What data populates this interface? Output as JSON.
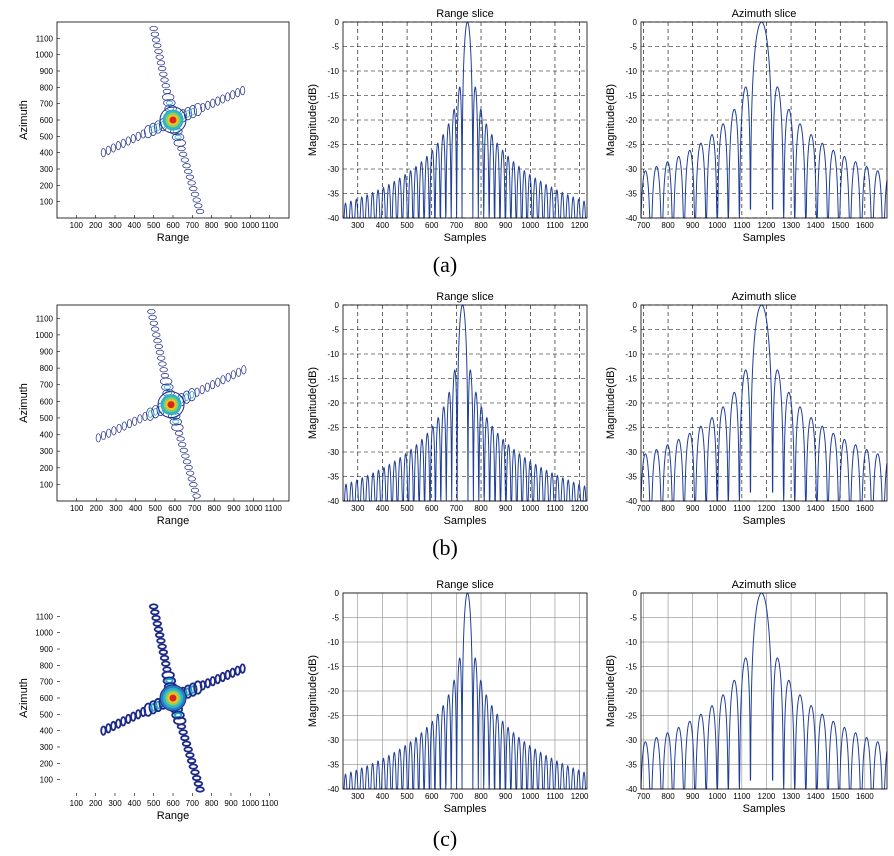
{
  "captions": [
    "(a)",
    "(b)",
    "(c)"
  ],
  "colors": {
    "line": "#1f3f99",
    "contour_outer": "#1e2a8a",
    "contour_mid": "#1ea5c8",
    "core_warm": "#f3c21b",
    "core_hot": "#d7261e"
  },
  "rows": [
    {
      "caption": "(a)",
      "contour": {
        "xlabel": "Range",
        "ylabel": "Azimuth",
        "xticks": [
          "100",
          "200",
          "300",
          "400",
          "500",
          "600",
          "700",
          "800",
          "900",
          "1000",
          "1100"
        ],
        "yticks": [
          "100",
          "200",
          "300",
          "400",
          "500",
          "600",
          "700",
          "800",
          "900",
          "1000",
          "1100"
        ],
        "xlim": [
          0,
          1200
        ],
        "ylim": [
          0,
          1200
        ],
        "center": [
          600,
          600
        ],
        "range_arm": [
          [
            240,
            400
          ],
          [
            960,
            780
          ]
        ],
        "azimuth_arm": [
          [
            500,
            1160
          ],
          [
            740,
            40
          ]
        ]
      },
      "range_slice": {
        "title": "Range slice",
        "xlabel": "Samples",
        "ylabel": "Magnitude(dB)",
        "grid": "dashed",
        "xlim": [
          240,
          1230
        ],
        "ylim": [
          -40,
          0
        ],
        "xticks": [
          "300",
          "400",
          "500",
          "600",
          "700",
          "800",
          "900",
          "1000",
          "1100",
          "1200"
        ],
        "yticks": [
          "0",
          "-5",
          "-10",
          "-15",
          "-20",
          "-25",
          "-30",
          "-35",
          "-40"
        ],
        "peak_x": 745,
        "mainlobe_halfwidth": 22,
        "lobe_spacing": 28,
        "floor_db": -40
      },
      "azimuth_slice": {
        "title": "Azimuth slice",
        "xlabel": "Samples",
        "ylabel": "Magnitude(dB)",
        "grid": "dashed",
        "xlim": [
          690,
          1690
        ],
        "ylim": [
          -40,
          0
        ],
        "xticks": [
          "700",
          "800",
          "900",
          "1000",
          "1100",
          "1200",
          "1300",
          "1400",
          "1500",
          "1600"
        ],
        "yticks": [
          "0",
          "-5",
          "-10",
          "-15",
          "-20",
          "-25",
          "-30",
          "-35",
          "-40"
        ],
        "peak_x": 1180,
        "mainlobe_halfwidth": 45,
        "lobe_spacing": 68,
        "floor_db": -40
      }
    },
    {
      "caption": "(b)",
      "contour": {
        "xlabel": "Range",
        "ylabel": "Azimuth",
        "xticks": [
          "100",
          "200",
          "300",
          "400",
          "500",
          "600",
          "700",
          "800",
          "900",
          "1000",
          "1100"
        ],
        "yticks": [
          "100",
          "200",
          "300",
          "400",
          "500",
          "600",
          "700",
          "800",
          "900",
          "1000",
          "1100"
        ],
        "xlim": [
          0,
          1180
        ],
        "ylim": [
          0,
          1180
        ],
        "center": [
          580,
          580
        ],
        "range_arm": [
          [
            210,
            380
          ],
          [
            950,
            790
          ]
        ],
        "azimuth_arm": [
          [
            480,
            1140
          ],
          [
            710,
            30
          ]
        ]
      },
      "range_slice": {
        "title": "Range slice",
        "xlabel": "Samples",
        "ylabel": "Magnitude(dB)",
        "grid": "dashed",
        "xlim": [
          240,
          1230
        ],
        "ylim": [
          -40,
          0
        ],
        "xticks": [
          "300",
          "400",
          "500",
          "600",
          "700",
          "800",
          "900",
          "1000",
          "1100",
          "1200"
        ],
        "yticks": [
          "0",
          "-5",
          "-10",
          "-15",
          "-20",
          "-25",
          "-30",
          "-35",
          "-40"
        ],
        "peak_x": 725,
        "mainlobe_halfwidth": 22,
        "lobe_spacing": 28,
        "floor_db": -40
      },
      "azimuth_slice": {
        "title": "Azimuth slice",
        "xlabel": "Samples",
        "ylabel": "Magnitude(dB)",
        "grid": "dashed",
        "xlim": [
          690,
          1690
        ],
        "ylim": [
          -40,
          0
        ],
        "xticks": [
          "700",
          "800",
          "900",
          "1000",
          "1100",
          "1200",
          "1300",
          "1400",
          "1500",
          "1600"
        ],
        "yticks": [
          "0",
          "-5",
          "-10",
          "-15",
          "-20",
          "-25",
          "-30",
          "-35",
          "-40"
        ],
        "peak_x": 1180,
        "mainlobe_halfwidth": 45,
        "lobe_spacing": 68,
        "floor_db": -40
      }
    },
    {
      "caption": "(c)",
      "contour": {
        "xlabel": "Range",
        "ylabel": "Azimuth",
        "xticks": [
          "100",
          "200",
          "300",
          "400",
          "500",
          "600",
          "700",
          "800",
          "900",
          "1000",
          "1100"
        ],
        "yticks": [
          "100",
          "200",
          "300",
          "400",
          "500",
          "600",
          "700",
          "800",
          "900",
          "1000",
          "1100"
        ],
        "xlim": [
          0,
          1200
        ],
        "ylim": [
          0,
          1200
        ],
        "center": [
          600,
          600
        ],
        "range_arm": [
          [
            240,
            400
          ],
          [
            960,
            780
          ]
        ],
        "azimuth_arm": [
          [
            500,
            1160
          ],
          [
            740,
            40
          ]
        ]
      },
      "range_slice": {
        "title": "Range slice",
        "xlabel": "Samples",
        "ylabel": "Magnitude(dB)",
        "grid": "solid",
        "xlim": [
          240,
          1230
        ],
        "ylim": [
          -40,
          0
        ],
        "xticks": [
          "300",
          "400",
          "500",
          "600",
          "700",
          "800",
          "900",
          "1000",
          "1100",
          "1200"
        ],
        "yticks": [
          "0",
          "-5",
          "-10",
          "-15",
          "-20",
          "-25",
          "-30",
          "-35",
          "-40"
        ],
        "peak_x": 745,
        "mainlobe_halfwidth": 22,
        "lobe_spacing": 28,
        "floor_db": -40
      },
      "azimuth_slice": {
        "title": "Azimuth slice",
        "xlabel": "Samples",
        "ylabel": "Magnitude(dB)",
        "grid": "solid",
        "xlim": [
          690,
          1690
        ],
        "ylim": [
          -40,
          0
        ],
        "xticks": [
          "700",
          "800",
          "900",
          "1000",
          "1100",
          "1200",
          "1300",
          "1400",
          "1500",
          "1600"
        ],
        "yticks": [
          "0",
          "-5",
          "-10",
          "-15",
          "-20",
          "-25",
          "-30",
          "-35",
          "-40"
        ],
        "peak_x": 1180,
        "mainlobe_halfwidth": 45,
        "lobe_spacing": 68,
        "floor_db": -40
      }
    }
  ],
  "chart_data": [
    {
      "type": "line",
      "title": "Range slice",
      "xlabel": "Samples",
      "ylabel": "Magnitude(dB)",
      "panel": "(a)",
      "xlim": [
        240,
        1230
      ],
      "ylim": [
        -40,
        0
      ],
      "mainlobe_peak": [
        745,
        0
      ],
      "sidelobe_peaks": [
        [
          717,
          -13.3
        ],
        [
          773,
          -13.3
        ],
        [
          689,
          -17.8
        ],
        [
          801,
          -17.8
        ],
        [
          661,
          -20.8
        ],
        [
          829,
          -20.8
        ]
      ]
    },
    {
      "type": "line",
      "title": "Azimuth slice",
      "xlabel": "Samples",
      "ylabel": "Magnitude(dB)",
      "panel": "(a)",
      "xlim": [
        690,
        1690
      ],
      "ylim": [
        -40,
        0
      ],
      "mainlobe_peak": [
        1180,
        0
      ],
      "sidelobe_peaks": [
        [
          1112,
          -13.3
        ],
        [
          1248,
          -13.3
        ],
        [
          1044,
          -17.8
        ],
        [
          1316,
          -17.8
        ],
        [
          976,
          -20.8
        ],
        [
          1384,
          -20.8
        ]
      ]
    },
    {
      "type": "line",
      "title": "Range slice",
      "xlabel": "Samples",
      "ylabel": "Magnitude(dB)",
      "panel": "(b)",
      "xlim": [
        240,
        1230
      ],
      "ylim": [
        -40,
        0
      ],
      "mainlobe_peak": [
        725,
        0
      ],
      "sidelobe_peaks": [
        [
          697,
          -13.3
        ],
        [
          753,
          -13.3
        ],
        [
          669,
          -17.8
        ],
        [
          781,
          -17.8
        ]
      ]
    },
    {
      "type": "line",
      "title": "Azimuth slice",
      "xlabel": "Samples",
      "ylabel": "Magnitude(dB)",
      "panel": "(b)",
      "xlim": [
        690,
        1690
      ],
      "ylim": [
        -40,
        0
      ],
      "mainlobe_peak": [
        1180,
        0
      ],
      "sidelobe_peaks": [
        [
          1112,
          -13.3
        ],
        [
          1248,
          -13.3
        ],
        [
          1044,
          -17.8
        ],
        [
          1316,
          -17.8
        ]
      ]
    },
    {
      "type": "line",
      "title": "Range slice",
      "xlabel": "Samples",
      "ylabel": "Magnitude(dB)",
      "panel": "(c)",
      "xlim": [
        240,
        1230
      ],
      "ylim": [
        -40,
        0
      ],
      "mainlobe_peak": [
        745,
        0
      ],
      "sidelobe_peaks": [
        [
          717,
          -13.3
        ],
        [
          773,
          -13.3
        ],
        [
          689,
          -17.8
        ],
        [
          801,
          -17.8
        ]
      ]
    },
    {
      "type": "line",
      "title": "Azimuth slice",
      "xlabel": "Samples",
      "ylabel": "Magnitude(dB)",
      "panel": "(c)",
      "xlim": [
        690,
        1690
      ],
      "ylim": [
        -40,
        0
      ],
      "mainlobe_peak": [
        1180,
        0
      ],
      "sidelobe_peaks": [
        [
          1112,
          -13.3
        ],
        [
          1248,
          -13.3
        ],
        [
          1044,
          -17.8
        ],
        [
          1316,
          -17.8
        ]
      ]
    }
  ]
}
